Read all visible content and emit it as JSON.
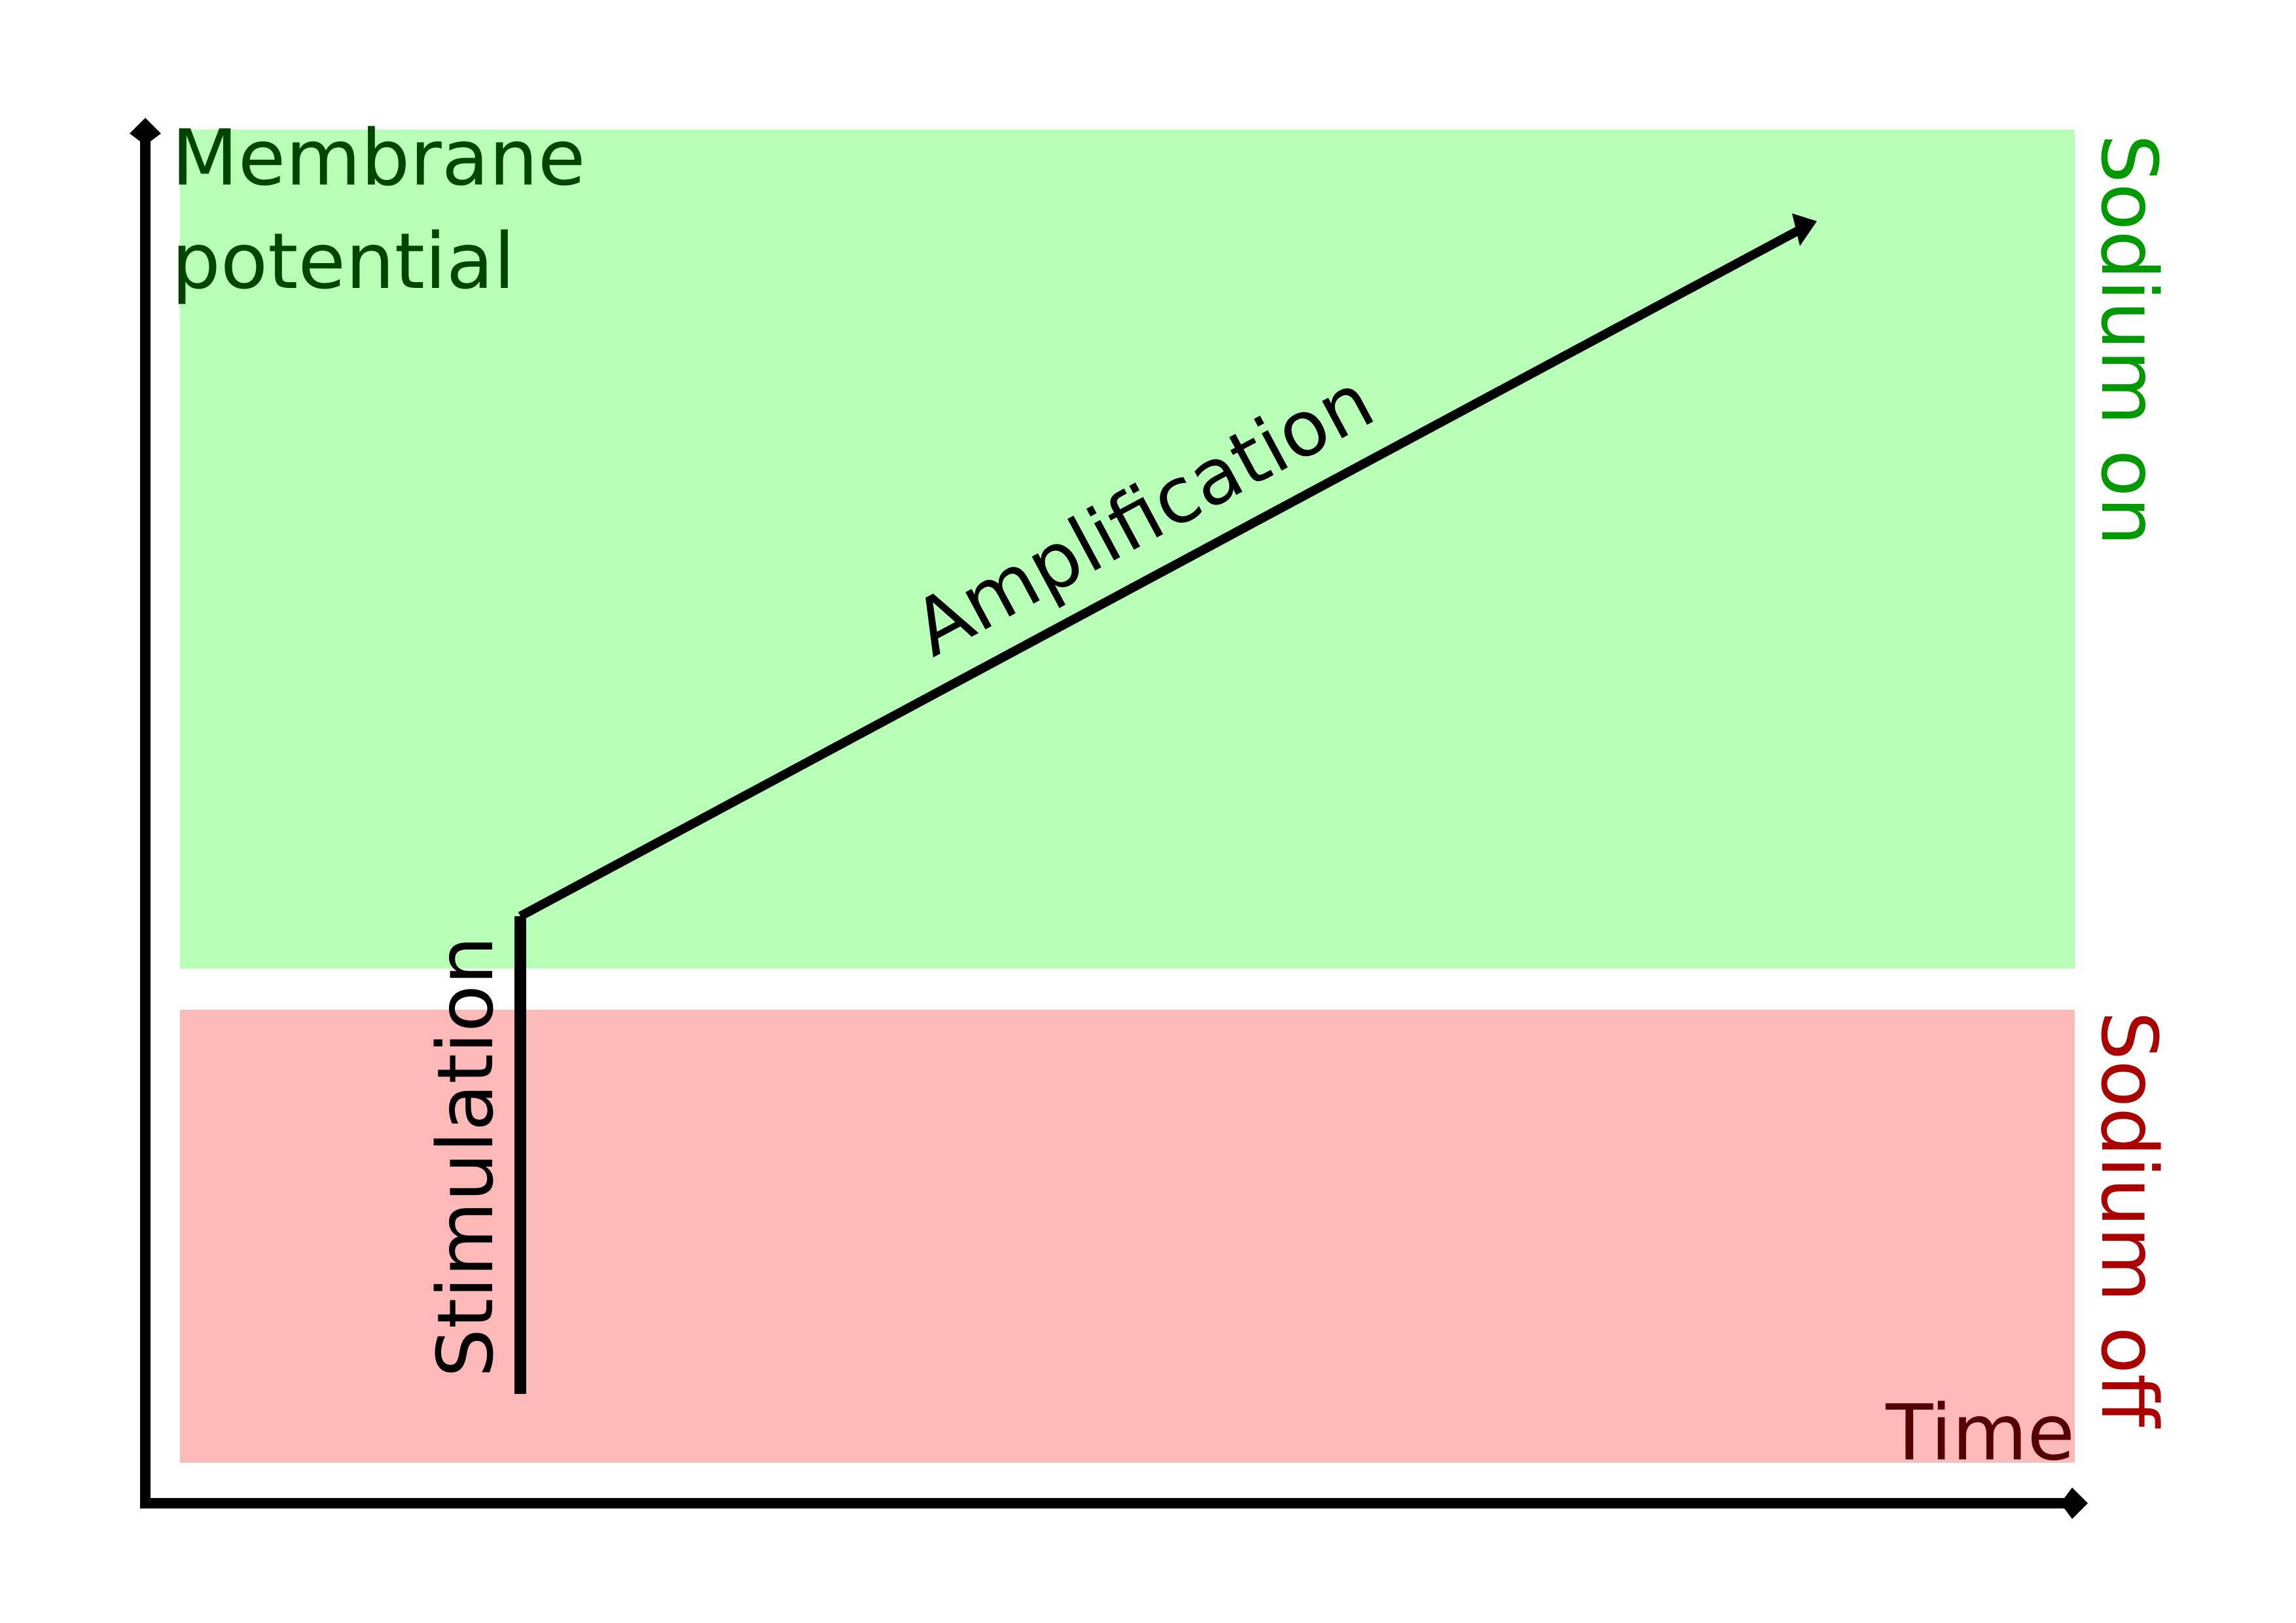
{
  "diagram": {
    "y_axis_label_line1": "Membrane",
    "y_axis_label_line2": "potential",
    "x_axis_label": "Time",
    "zone_top_label": "Sodium on",
    "zone_bottom_label": "Sodium off",
    "stimulation_label": "Stimulation",
    "amplification_label": "Amplification"
  },
  "colors": {
    "sodium_on_fill": "#b8ffb8",
    "sodium_on_text": "#009900",
    "sodium_off_fill": "#fdb8b8",
    "sodium_off_text": "#aa0000",
    "y_label_text": "#004400",
    "x_label_text": "#550000",
    "line": "#000000"
  }
}
